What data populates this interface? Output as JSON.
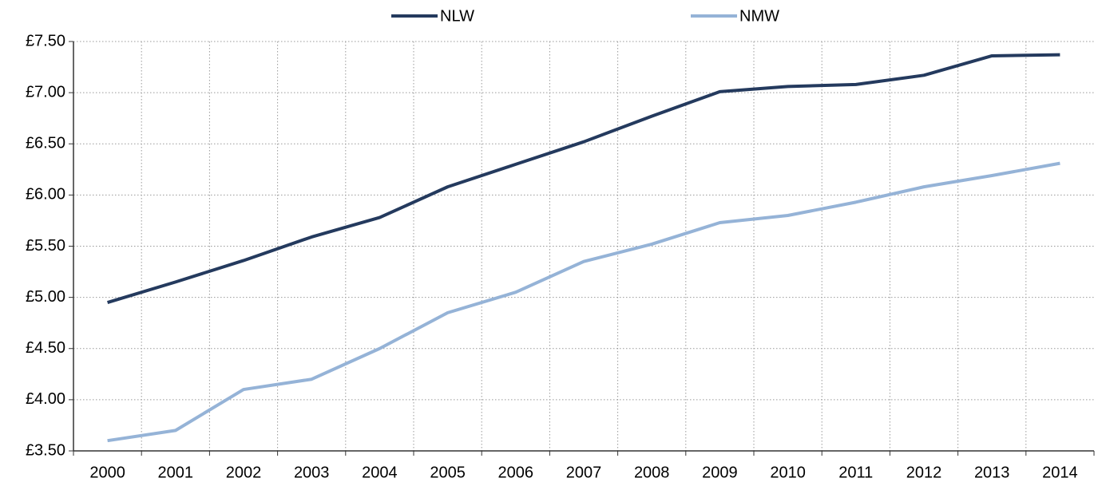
{
  "chart_data": {
    "type": "line",
    "categories": [
      "2000",
      "2001",
      "2002",
      "2003",
      "2004",
      "2005",
      "2006",
      "2007",
      "2008",
      "2009",
      "2010",
      "2011",
      "2012",
      "2013",
      "2014"
    ],
    "series": [
      {
        "name": "NLW",
        "color": "#243a5e",
        "values": [
          4.95,
          5.15,
          5.36,
          5.59,
          5.78,
          6.08,
          6.3,
          6.52,
          6.77,
          7.01,
          7.06,
          7.08,
          7.17,
          7.36,
          7.37
        ]
      },
      {
        "name": "NMW",
        "color": "#95b3d7",
        "values": [
          3.6,
          3.7,
          4.1,
          4.2,
          4.5,
          4.85,
          5.05,
          5.35,
          5.52,
          5.73,
          5.8,
          5.93,
          6.08,
          6.19,
          6.31
        ]
      }
    ],
    "ylim": [
      3.5,
      7.5
    ],
    "yticks": [
      {
        "value": 3.5,
        "label": "£3.50"
      },
      {
        "value": 4,
        "label": "£4.00"
      },
      {
        "value": 4.5,
        "label": "£4.50"
      },
      {
        "value": 5,
        "label": "£5.00"
      },
      {
        "value": 5.5,
        "label": "£5.50"
      },
      {
        "value": 6,
        "label": "£6.00"
      },
      {
        "value": 6.5,
        "label": "£6.50"
      },
      {
        "value": 7,
        "label": "£7.00"
      },
      {
        "value": 7.5,
        "label": "£7.50"
      }
    ],
    "grid": true,
    "legend": "top"
  }
}
